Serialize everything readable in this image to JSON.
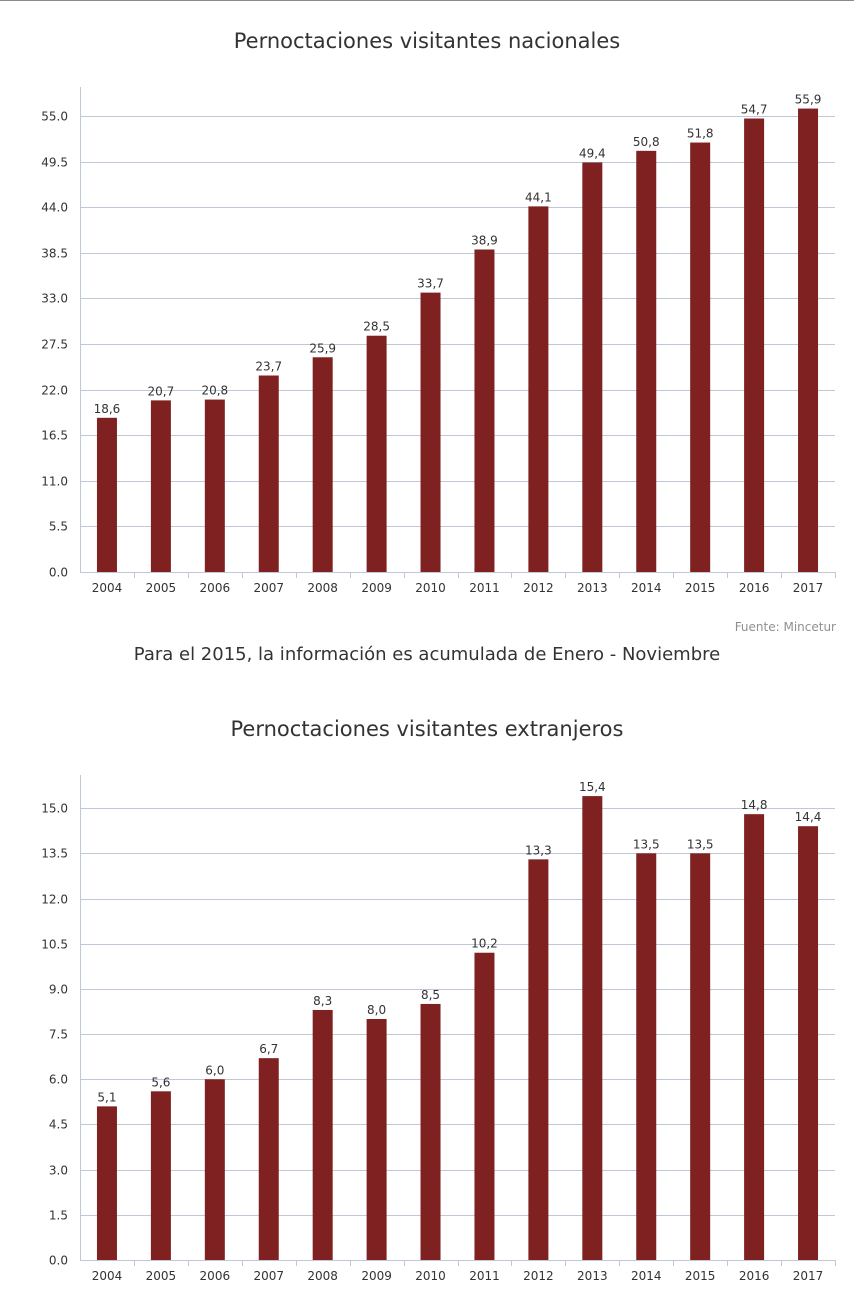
{
  "colors": {
    "bar": "#7f2121",
    "grid": "#c0c8d8",
    "axis": "#c0c8d8",
    "text": "#333333"
  },
  "source": "Fuente: Mincetur",
  "note": "Para el 2015, la información es acumulada de Enero - Noviembre",
  "chart_data": [
    {
      "type": "bar",
      "title": "Pernoctaciones visitantes nacionales",
      "xlabel": "",
      "ylabel": "",
      "categories": [
        "2004",
        "2005",
        "2006",
        "2007",
        "2008",
        "2009",
        "2010",
        "2011",
        "2012",
        "2013",
        "2014",
        "2015",
        "2016",
        "2017"
      ],
      "values": [
        18.6,
        20.7,
        20.8,
        23.7,
        25.9,
        28.5,
        33.7,
        38.9,
        44.1,
        49.4,
        50.8,
        51.8,
        54.7,
        55.9
      ],
      "value_labels": [
        "18,6",
        "20,7",
        "20,8",
        "23,7",
        "25,9",
        "28,5",
        "33,7",
        "38,9",
        "44,1",
        "49,4",
        "50,8",
        "51,8",
        "54,7",
        "55,9"
      ],
      "ylim": [
        0,
        58.5
      ],
      "yticks": [
        "0.0",
        "5.5",
        "11.0",
        "16.5",
        "22.0",
        "27.5",
        "33.0",
        "38.5",
        "44.0",
        "49.5",
        "55.0"
      ],
      "ytick_values": [
        0,
        5.5,
        11,
        16.5,
        22,
        27.5,
        33,
        38.5,
        44,
        49.5,
        55
      ],
      "grid": true,
      "legend": "none"
    },
    {
      "type": "bar",
      "title": "Pernoctaciones visitantes extranjeros",
      "xlabel": "",
      "ylabel": "",
      "categories": [
        "2004",
        "2005",
        "2006",
        "2007",
        "2008",
        "2009",
        "2010",
        "2011",
        "2012",
        "2013",
        "2014",
        "2015",
        "2016",
        "2017"
      ],
      "values": [
        5.1,
        5.6,
        6.0,
        6.7,
        8.3,
        8.0,
        8.5,
        10.2,
        13.3,
        15.4,
        13.5,
        13.5,
        14.8,
        14.4
      ],
      "value_labels": [
        "5,1",
        "5,6",
        "6,0",
        "6,7",
        "8,3",
        "8,0",
        "8,5",
        "10,2",
        "13,3",
        "15,4",
        "13,5",
        "13,5",
        "14,8",
        "14,4"
      ],
      "ylim": [
        0,
        16.1
      ],
      "yticks": [
        "0.0",
        "1.5",
        "3.0",
        "4.5",
        "6.0",
        "7.5",
        "9.0",
        "10.5",
        "12.0",
        "13.5",
        "15.0"
      ],
      "ytick_values": [
        0,
        1.5,
        3,
        4.5,
        6,
        7.5,
        9,
        10.5,
        12,
        13.5,
        15
      ],
      "grid": true,
      "legend": "none"
    }
  ]
}
